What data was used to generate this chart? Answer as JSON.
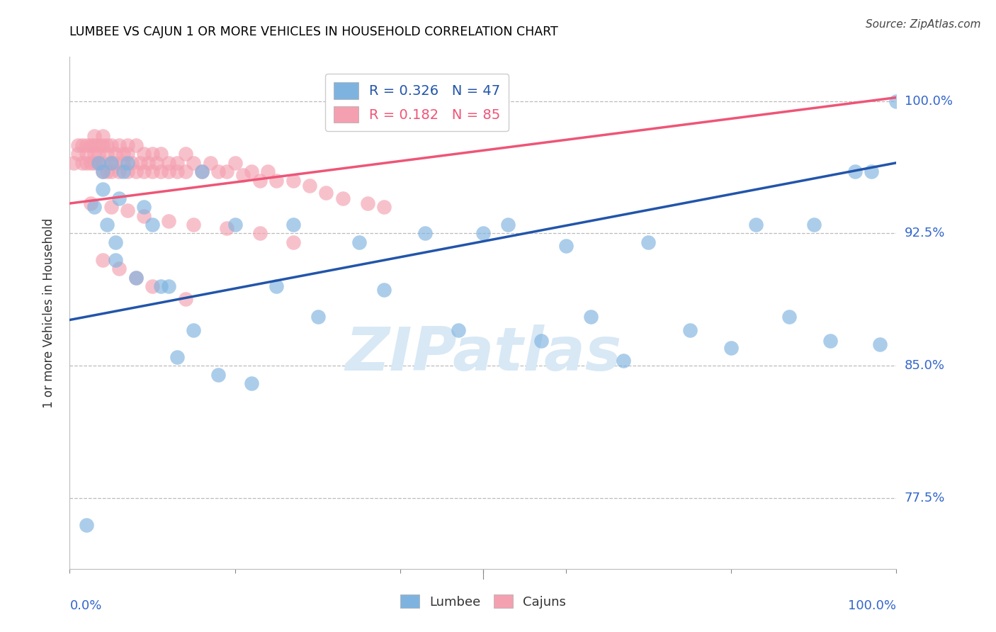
{
  "title": "LUMBEE VS CAJUN 1 OR MORE VEHICLES IN HOUSEHOLD CORRELATION CHART",
  "source": "Source: ZipAtlas.com",
  "ylabel": "1 or more Vehicles in Household",
  "ytick_values": [
    0.775,
    0.85,
    0.925,
    1.0
  ],
  "ytick_labels": [
    "77.5%",
    "85.0%",
    "92.5%",
    "100.0%"
  ],
  "xlim": [
    0.0,
    1.0
  ],
  "ylim": [
    0.735,
    1.025
  ],
  "lumbee_R": 0.326,
  "lumbee_N": 47,
  "cajun_R": 0.182,
  "cajun_N": 85,
  "lumbee_color": "#7EB3E0",
  "cajun_color": "#F4A0B0",
  "lumbee_line_color": "#2255AA",
  "cajun_line_color": "#EE5577",
  "legend_lumbee": "Lumbee",
  "legend_cajun": "Cajuns",
  "watermark": "ZIPatlas",
  "lumbee_trend_x": [
    0.0,
    1.0
  ],
  "lumbee_trend_y": [
    0.876,
    0.965
  ],
  "cajun_trend_x": [
    0.0,
    1.0
  ],
  "cajun_trend_y": [
    0.942,
    1.002
  ],
  "lumbee_x": [
    0.02,
    0.03,
    0.035,
    0.04,
    0.04,
    0.045,
    0.05,
    0.055,
    0.06,
    0.065,
    0.07,
    0.08,
    0.09,
    0.1,
    0.11,
    0.12,
    0.13,
    0.15,
    0.16,
    0.18,
    0.2,
    0.22,
    0.25,
    0.27,
    0.3,
    0.35,
    0.38,
    0.43,
    0.47,
    0.5,
    0.53,
    0.57,
    0.6,
    0.63,
    0.67,
    0.7,
    0.75,
    0.8,
    0.83,
    0.87,
    0.9,
    0.92,
    0.95,
    0.97,
    0.98,
    1.0,
    0.055
  ],
  "lumbee_y": [
    0.76,
    0.94,
    0.965,
    0.95,
    0.96,
    0.93,
    0.965,
    0.92,
    0.945,
    0.96,
    0.965,
    0.9,
    0.94,
    0.93,
    0.895,
    0.895,
    0.855,
    0.87,
    0.96,
    0.845,
    0.93,
    0.84,
    0.895,
    0.93,
    0.878,
    0.92,
    0.893,
    0.925,
    0.87,
    0.925,
    0.93,
    0.864,
    0.918,
    0.878,
    0.853,
    0.92,
    0.87,
    0.86,
    0.93,
    0.878,
    0.93,
    0.864,
    0.96,
    0.96,
    0.862,
    1.0,
    0.91
  ],
  "cajun_x": [
    0.005,
    0.01,
    0.01,
    0.015,
    0.015,
    0.02,
    0.02,
    0.02,
    0.025,
    0.025,
    0.03,
    0.03,
    0.03,
    0.03,
    0.035,
    0.035,
    0.035,
    0.04,
    0.04,
    0.04,
    0.04,
    0.045,
    0.045,
    0.045,
    0.05,
    0.05,
    0.05,
    0.055,
    0.055,
    0.06,
    0.06,
    0.065,
    0.065,
    0.07,
    0.07,
    0.07,
    0.075,
    0.08,
    0.08,
    0.085,
    0.09,
    0.09,
    0.095,
    0.1,
    0.1,
    0.105,
    0.11,
    0.11,
    0.12,
    0.12,
    0.13,
    0.13,
    0.14,
    0.14,
    0.15,
    0.16,
    0.17,
    0.18,
    0.19,
    0.2,
    0.21,
    0.22,
    0.23,
    0.24,
    0.25,
    0.27,
    0.29,
    0.31,
    0.33,
    0.36,
    0.38,
    0.025,
    0.05,
    0.07,
    0.09,
    0.12,
    0.15,
    0.19,
    0.23,
    0.27,
    0.04,
    0.06,
    0.08,
    0.1,
    0.14
  ],
  "cajun_y": [
    0.965,
    0.97,
    0.975,
    0.965,
    0.975,
    0.97,
    0.965,
    0.975,
    0.965,
    0.975,
    0.97,
    0.965,
    0.975,
    0.98,
    0.965,
    0.975,
    0.97,
    0.965,
    0.975,
    0.96,
    0.98,
    0.97,
    0.96,
    0.975,
    0.965,
    0.975,
    0.96,
    0.97,
    0.965,
    0.975,
    0.96,
    0.97,
    0.965,
    0.975,
    0.96,
    0.97,
    0.965,
    0.975,
    0.96,
    0.965,
    0.97,
    0.96,
    0.965,
    0.96,
    0.97,
    0.965,
    0.96,
    0.97,
    0.965,
    0.96,
    0.965,
    0.96,
    0.97,
    0.96,
    0.965,
    0.96,
    0.965,
    0.96,
    0.96,
    0.965,
    0.958,
    0.96,
    0.955,
    0.96,
    0.955,
    0.955,
    0.952,
    0.948,
    0.945,
    0.942,
    0.94,
    0.942,
    0.94,
    0.938,
    0.935,
    0.932,
    0.93,
    0.928,
    0.925,
    0.92,
    0.91,
    0.905,
    0.9,
    0.895,
    0.888
  ]
}
